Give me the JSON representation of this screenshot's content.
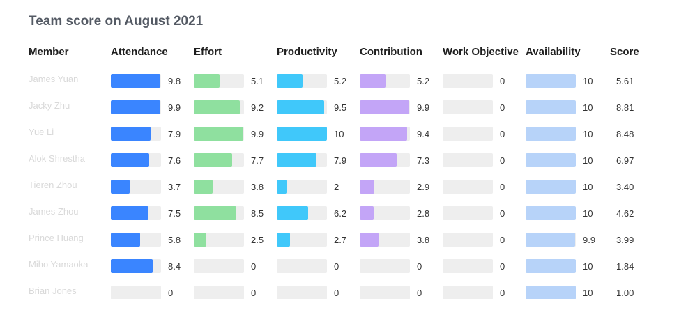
{
  "title": "Team score on August 2021",
  "columns": {
    "member": "Member",
    "attendance": "Attendance",
    "effort": "Effort",
    "productivity": "Productivity",
    "contribution": "Contribution",
    "work_objective": "Work Objective",
    "availability": "Availability",
    "score": "Score"
  },
  "scale_max": 10,
  "colors": {
    "attendance": "#3a85ff",
    "effort": "#8fe09f",
    "productivity": "#40c8fa",
    "contribution": "#c3a5f7",
    "work_objective": "#b7d3f9",
    "availability": "#b7d3f9",
    "track": "#eeeeee"
  },
  "rows": [
    {
      "member": "James Yuan",
      "attendance": "9.8",
      "effort": "5.1",
      "productivity": "5.2",
      "contribution": "5.2",
      "work_objective": "0",
      "availability": "10",
      "score": "5.61"
    },
    {
      "member": "Jacky Zhu",
      "attendance": "9.9",
      "effort": "9.2",
      "productivity": "9.5",
      "contribution": "9.9",
      "work_objective": "0",
      "availability": "10",
      "score": "8.81"
    },
    {
      "member": "Yue Li",
      "attendance": "7.9",
      "effort": "9.9",
      "productivity": "10",
      "contribution": "9.4",
      "work_objective": "0",
      "availability": "10",
      "score": "8.48"
    },
    {
      "member": "Alok Shrestha",
      "attendance": "7.6",
      "effort": "7.7",
      "productivity": "7.9",
      "contribution": "7.3",
      "work_objective": "0",
      "availability": "10",
      "score": "6.97"
    },
    {
      "member": "Tieren Zhou",
      "attendance": "3.7",
      "effort": "3.8",
      "productivity": "2",
      "contribution": "2.9",
      "work_objective": "0",
      "availability": "10",
      "score": "3.40"
    },
    {
      "member": "James Zhou",
      "attendance": "7.5",
      "effort": "8.5",
      "productivity": "6.2",
      "contribution": "2.8",
      "work_objective": "0",
      "availability": "10",
      "score": "4.62"
    },
    {
      "member": "Prince Huang",
      "attendance": "5.8",
      "effort": "2.5",
      "productivity": "2.7",
      "contribution": "3.8",
      "work_objective": "0",
      "availability": "9.9",
      "score": "3.99"
    },
    {
      "member": "Miho Yamaoka",
      "attendance": "8.4",
      "effort": "0",
      "productivity": "0",
      "contribution": "0",
      "work_objective": "0",
      "availability": "10",
      "score": "1.84"
    },
    {
      "member": "Brian Jones",
      "attendance": "0",
      "effort": "0",
      "productivity": "0",
      "contribution": "0",
      "work_objective": "0",
      "availability": "10",
      "score": "1.00"
    }
  ]
}
